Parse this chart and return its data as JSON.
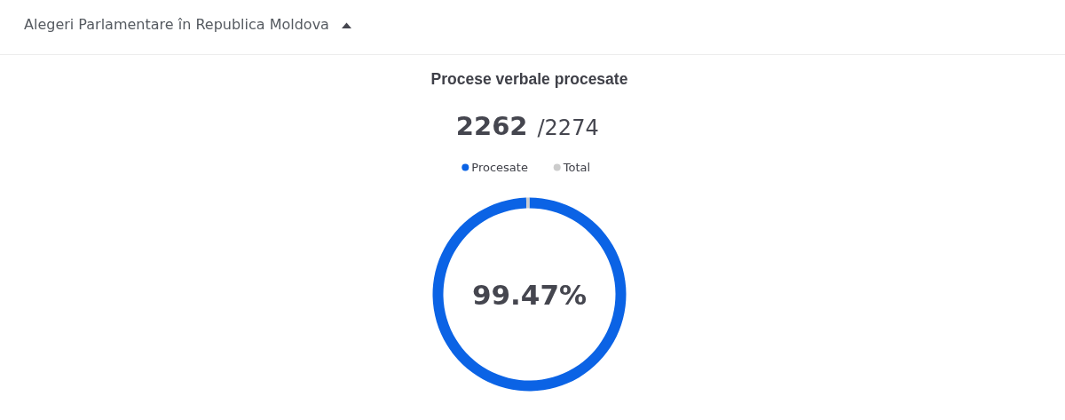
{
  "chart_data": {
    "type": "donut",
    "title": "Alegeri Parlamentare în Republica Moldova",
    "subtitle": "Procese verbale procesate",
    "categories": [
      "Procesate",
      "Total"
    ],
    "values": [
      99.47,
      0.53
    ],
    "colors": [
      "#0b63e5",
      "#cccccc"
    ],
    "value_labels": [
      "99.47%",
      null
    ],
    "annotations": [
      "2262",
      "/2274"
    ],
    "legend": "top"
  }
}
